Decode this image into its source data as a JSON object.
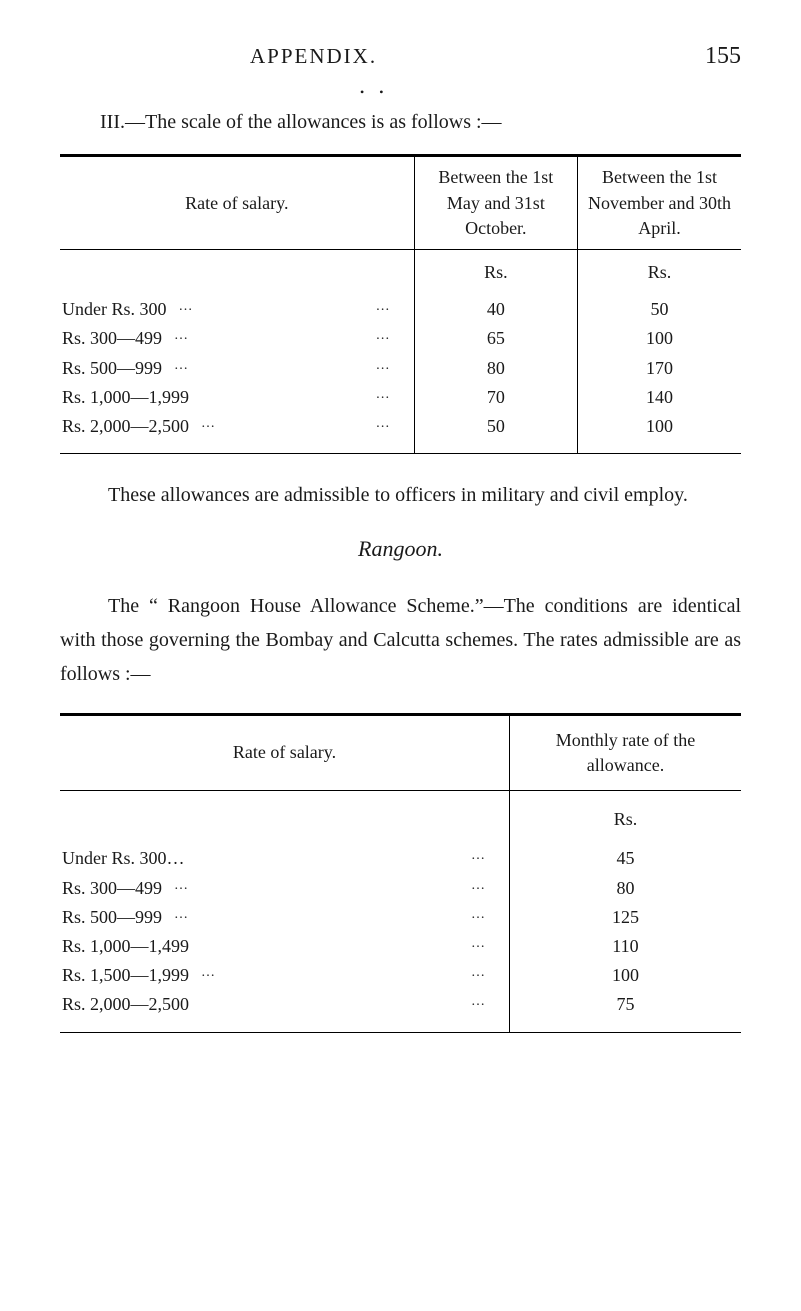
{
  "header": {
    "title": "APPENDIX.",
    "page_number": "155"
  },
  "intro": "III.—The scale of the allowances is as follows :—",
  "table1": {
    "headers": {
      "left": "Rate of salary.",
      "mid": "Between the 1st May and 31st October.",
      "right": "Between the 1st November and 30th April."
    },
    "subhead": {
      "mid": "Rs.",
      "right": "Rs."
    },
    "rows": [
      {
        "label": "Under Rs. 300",
        "mid": "40",
        "right": "50"
      },
      {
        "label": "Rs. 300—499",
        "mid": "65",
        "right": "100"
      },
      {
        "label": "Rs. 500—999",
        "mid": "80",
        "right": "170"
      },
      {
        "label": "Rs. 1,000—1,999",
        "mid": "70",
        "right": "140"
      },
      {
        "label": "Rs. 2,000—2,500",
        "mid": "50",
        "right": "100"
      }
    ]
  },
  "paragraph1": "These allowances are admissible to officers in military and civil employ.",
  "section_heading": "Rangoon.",
  "paragraph2": "The “ Rangoon House Allowance Scheme.”—The condi­tions are identical with those governing the Bombay and Calcutta schemes.  The rates admissible are as follows :—",
  "table2": {
    "headers": {
      "left": "Rate of salary.",
      "right": "Monthly rate of the allowance."
    },
    "subhead": {
      "right": "Rs."
    },
    "rows": [
      {
        "label": "Under Rs. 300…",
        "right": "45"
      },
      {
        "label": "Rs. 300—499",
        "right": "80"
      },
      {
        "label": "Rs. 500—999",
        "right": "125"
      },
      {
        "label": "Rs. 1,000—1,499",
        "right": "110"
      },
      {
        "label": "Rs. 1,500—1,999",
        "right": "100"
      },
      {
        "label": "Rs. 2,000—2,500",
        "right": "75"
      }
    ]
  }
}
